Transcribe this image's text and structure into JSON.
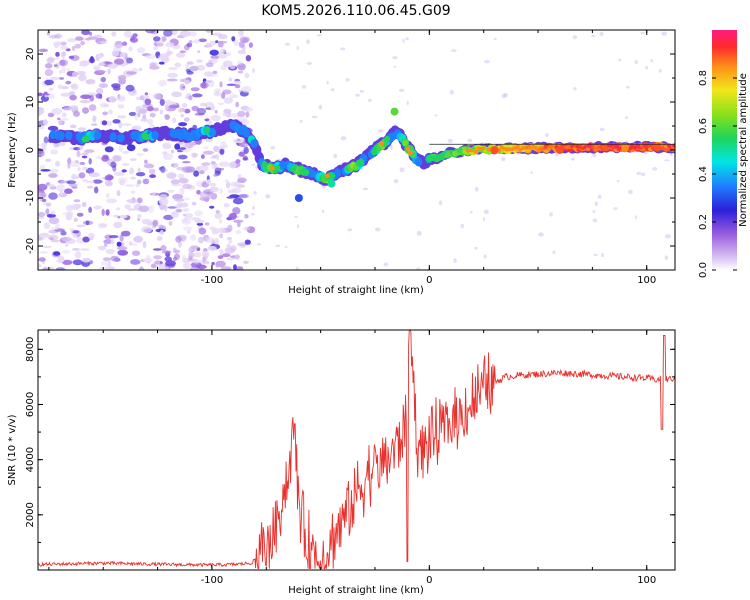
{
  "title": "KOM5.2026.110.06.45.G09",
  "colors": {
    "snr_line": "#e8312c",
    "ridge": "#1a3cff",
    "noise": "#8a4fd8",
    "background": "#ffffff"
  },
  "chart_data": [
    {
      "type": "heatmap",
      "xlabel": "Height of straight line (km)",
      "ylabel": "Frequency (Hz)",
      "xlim": [
        -180,
        113
      ],
      "ylim": [
        -25,
        25
      ],
      "x_ticks": [
        -100,
        0,
        100
      ],
      "y_ticks": [
        -20,
        -10,
        0,
        10,
        20
      ],
      "ridge": {
        "x": [
          -173,
          -160,
          -150,
          -140,
          -130,
          -120,
          -110,
          -100,
          -95,
          -90,
          -85,
          -80,
          -77,
          -72,
          -66,
          -60,
          -54,
          -48,
          -43,
          -38,
          -33,
          -28,
          -22,
          -18,
          -15,
          -12,
          -9,
          -6,
          -3,
          0,
          5,
          10,
          20,
          40,
          60,
          80,
          100,
          112
        ],
        "y": [
          3,
          2.5,
          3,
          2.5,
          3,
          3.5,
          3,
          4,
          4.5,
          5,
          4,
          1,
          -3,
          -4,
          -3,
          -4,
          -5,
          -6,
          -5,
          -4,
          -3,
          -1,
          1,
          2.5,
          4,
          2,
          0,
          -2,
          -2.5,
          -2,
          -1.5,
          -0.5,
          0,
          0.3,
          0.5,
          0.6,
          0.6,
          0.6
        ]
      },
      "peaks": {
        "x": [
          -16,
          -60,
          -45,
          30,
          60,
          90,
          105
        ],
        "y": [
          8,
          -10,
          -7,
          0,
          0,
          0.5,
          0.5
        ],
        "amp": [
          0.6,
          0.3,
          0.5,
          0.9,
          0.9,
          0.85,
          0.9
        ]
      },
      "noise_region": [
        -180,
        -82
      ]
    },
    {
      "type": "colorbar",
      "label": "Normalized spectral amplitude",
      "range": [
        0,
        1
      ],
      "ticks": [
        "0.0",
        "0.2",
        "0.4",
        "0.6",
        "0.8"
      ]
    },
    {
      "type": "line",
      "name": "SNR",
      "xlabel": "Height of straight line (km)",
      "ylabel": "SNR (10 * v/v)",
      "xlim": [
        -180,
        113
      ],
      "ylim": [
        0,
        8700
      ],
      "x_ticks": [
        -100,
        0,
        100
      ],
      "y_ticks": [
        2000,
        4000,
        6000,
        8000
      ],
      "x": [
        -180,
        -150,
        -120,
        -100,
        -90,
        -82,
        -78,
        -72,
        -68,
        -64,
        -62,
        -60,
        -58,
        -55,
        -50,
        -45,
        -40,
        -35,
        -30,
        -25,
        -20,
        -15,
        -12,
        -10,
        -9,
        -5,
        0,
        5,
        10,
        15,
        20,
        25,
        30,
        35,
        40,
        50,
        60,
        70,
        80,
        90,
        100,
        105,
        108,
        110,
        112
      ],
      "y": [
        200,
        250,
        200,
        180,
        200,
        250,
        500,
        1200,
        2500,
        3800,
        5200,
        2500,
        1500,
        800,
        300,
        1000,
        1800,
        2500,
        3300,
        3700,
        4000,
        4500,
        5000,
        5800,
        8700,
        4200,
        4700,
        5000,
        5300,
        5700,
        6100,
        6500,
        6800,
        7000,
        7050,
        7100,
        7150,
        7100,
        7050,
        7000,
        6950,
        6900,
        6950,
        6900,
        6950
      ],
      "spikes": [
        {
          "x": -9,
          "y": 8700
        },
        {
          "x": -10,
          "y": 300
        },
        {
          "x": -62,
          "y": 5300
        },
        {
          "x": 107,
          "y": 5100
        },
        {
          "x": 108,
          "y": 8500
        }
      ]
    }
  ]
}
